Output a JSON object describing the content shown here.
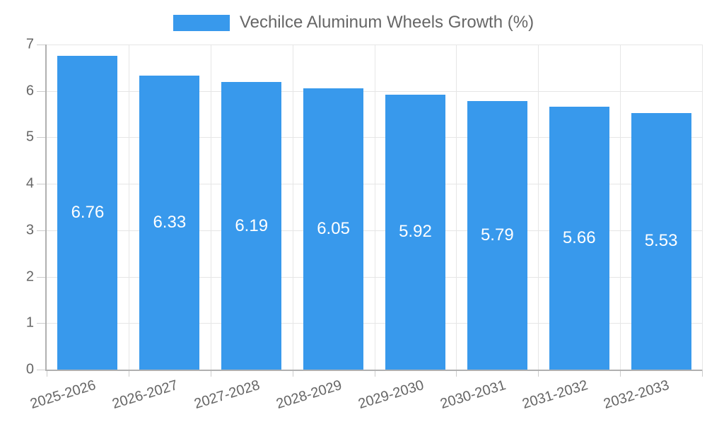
{
  "legend": {
    "label": "Vechilce Aluminum Wheels Growth (%)"
  },
  "chart_data": {
    "type": "bar",
    "title": "Vechilce Aluminum Wheels Growth (%)",
    "categories": [
      "2025-2026",
      "2026-2027",
      "2027-2028",
      "2028-2029",
      "2029-2030",
      "2030-2031",
      "2031-2032",
      "2032-2033"
    ],
    "values": [
      6.76,
      6.33,
      6.19,
      6.05,
      5.92,
      5.79,
      5.66,
      5.53
    ],
    "xlabel": "",
    "ylabel": "",
    "ylim": [
      0,
      7
    ],
    "y_ticks": [
      0,
      1,
      2,
      3,
      4,
      5,
      6,
      7
    ],
    "grid": true,
    "legend_position": "top",
    "colors": {
      "bar": "#3899EC",
      "grid": "#E6E6E6",
      "axis": "#B0B0B0",
      "tick": "#CCCCCC",
      "text": "#666666",
      "value_label": "#FFFFFF",
      "background": "#FFFFFF"
    }
  }
}
